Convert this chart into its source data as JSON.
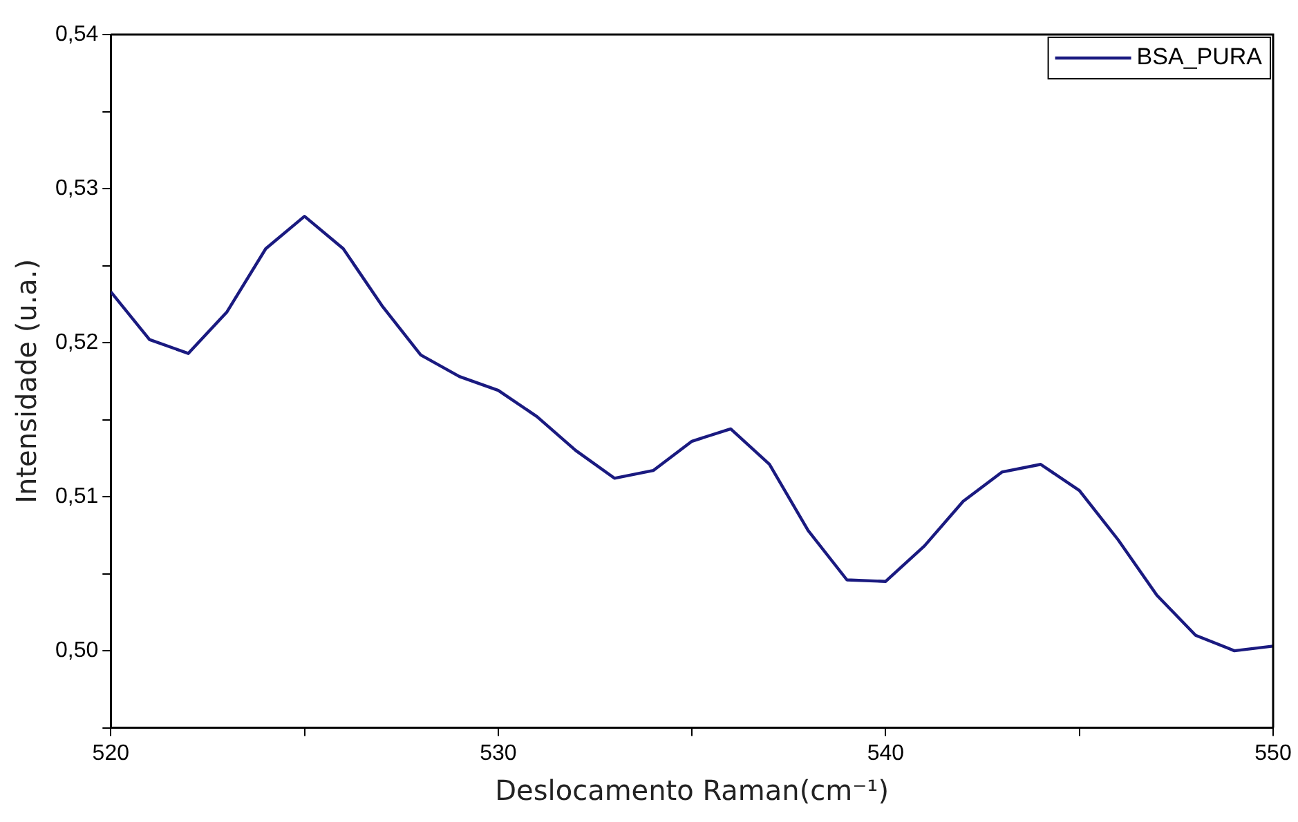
{
  "chart_data": {
    "type": "line",
    "xlabel": "Deslocamento Raman(cm⁻¹)",
    "ylabel": "Intensidade (u.a.)",
    "x": [
      520,
      521,
      522,
      523,
      524,
      525,
      526,
      527,
      528,
      529,
      530,
      531,
      532,
      533,
      534,
      535,
      536,
      537,
      538,
      539,
      540,
      541,
      542,
      543,
      544,
      545,
      546,
      547,
      548,
      549,
      550
    ],
    "series": [
      {
        "name": "BSA_PURA",
        "color": "#1a1a80",
        "values": [
          0.5233,
          0.5202,
          0.5193,
          0.522,
          0.5261,
          0.5282,
          0.5261,
          0.5224,
          0.5192,
          0.5178,
          0.5169,
          0.5152,
          0.513,
          0.5112,
          0.5117,
          0.5136,
          0.5144,
          0.5121,
          0.5078,
          0.5046,
          0.5045,
          0.5068,
          0.5097,
          0.5116,
          0.5121,
          0.5104,
          0.5072,
          0.5036,
          0.501,
          0.5,
          0.5003
        ]
      }
    ],
    "xlim": [
      520,
      550
    ],
    "xticks": [
      520,
      {
        "value": 525,
        "label": null
      },
      530,
      {
        "value": 535,
        "label": null
      },
      540,
      {
        "value": 545,
        "label": null
      },
      550
    ],
    "ylim": [
      0.495,
      0.54
    ],
    "yticks": [
      {
        "value": 0.495,
        "label": null
      },
      {
        "value": 0.5,
        "label": "0,50"
      },
      {
        "value": 0.505,
        "label": null
      },
      {
        "value": 0.51,
        "label": "0,51"
      },
      {
        "value": 0.515,
        "label": null
      },
      {
        "value": 0.52,
        "label": "0,52"
      },
      {
        "value": 0.525,
        "label": null
      },
      {
        "value": 0.53,
        "label": "0,53"
      },
      {
        "value": 0.535,
        "label": null
      },
      {
        "value": 0.54,
        "label": "0,54"
      }
    ],
    "grid": false,
    "legend": "top right",
    "marker": "none",
    "line_style": "solid"
  }
}
